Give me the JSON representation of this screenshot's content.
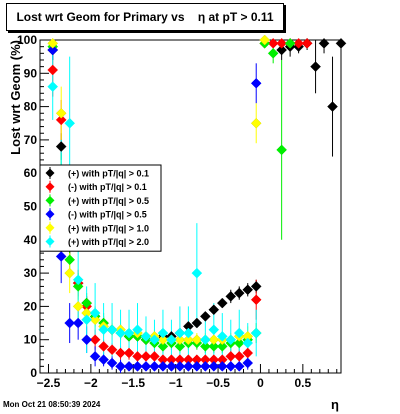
{
  "footer": {
    "timestamp": "Mon Oct 21 08:50:39 2024"
  },
  "chart_data": {
    "type": "scatter",
    "title": "Lost wrt Geom for Primary vs    η at pT > 0.11",
    "xlabel": "η",
    "ylabel": "Lost wrt Geom (%)",
    "xlim": [
      -2.6,
      0.95
    ],
    "ylim": [
      0,
      100
    ],
    "xticks": [
      -2.5,
      -2,
      -1.5,
      -1,
      -0.5,
      0,
      0.5
    ],
    "xtick_labels": [
      "−2.5",
      "−2",
      "−1.5",
      "−1",
      "−0.5",
      "0",
      "0.5"
    ],
    "yticks": [
      0,
      10,
      20,
      30,
      40,
      50,
      60,
      70,
      80,
      90,
      100
    ],
    "yticks_minor_step": 2,
    "grid": false,
    "legend_position": "middle-left",
    "series": [
      {
        "name": "(+) with pT/|q| > 0.1",
        "color": "#000000",
        "x": [
          -2.45,
          -2.35,
          -2.25,
          -2.15,
          -2.05,
          -1.95,
          -1.85,
          -1.75,
          -1.65,
          -1.55,
          -1.45,
          -1.35,
          -1.25,
          -1.15,
          -1.05,
          -0.95,
          -0.85,
          -0.75,
          -0.65,
          -0.55,
          -0.45,
          -0.35,
          -0.25,
          -0.15,
          -0.05,
          0.25,
          0.35,
          0.45,
          0.55,
          0.65,
          0.75,
          0.85,
          0.95
        ],
        "y": [
          97,
          68,
          38,
          27,
          21,
          17,
          15,
          13,
          12,
          11,
          11,
          10,
          10,
          11,
          11,
          12,
          14,
          15,
          17,
          19,
          21,
          23,
          24,
          25,
          26,
          97,
          98,
          98,
          99,
          92,
          99,
          80,
          99
        ],
        "err": [
          3,
          4,
          3,
          2,
          2,
          2,
          2,
          1,
          1,
          1,
          1,
          1,
          1,
          1,
          1,
          1,
          1,
          1,
          1,
          1,
          1,
          2,
          2,
          2,
          2,
          3,
          3,
          2,
          2,
          8,
          3,
          15,
          3
        ]
      },
      {
        "name": "(-) with pT/|q| > 0.1",
        "color": "#ff0000",
        "x": [
          -2.45,
          -2.35,
          -2.25,
          -2.15,
          -2.05,
          -1.95,
          -1.85,
          -1.75,
          -1.65,
          -1.55,
          -1.45,
          -1.35,
          -1.25,
          -1.15,
          -1.05,
          -0.95,
          -0.85,
          -0.75,
          -0.65,
          -0.55,
          -0.45,
          -0.35,
          -0.25,
          -0.15,
          -0.05,
          0.05,
          0.15,
          0.25,
          0.35,
          0.45,
          0.55
        ],
        "y": [
          91,
          76,
          38,
          27,
          20,
          10,
          8,
          7,
          6,
          6,
          5,
          5,
          5,
          4,
          4,
          4,
          4,
          4,
          4,
          4,
          4,
          5,
          5,
          6,
          22,
          99,
          99,
          99,
          99,
          99,
          99
        ],
        "err": [
          8,
          6,
          5,
          4,
          3,
          3,
          2,
          2,
          2,
          2,
          2,
          1,
          1,
          1,
          1,
          1,
          1,
          1,
          1,
          1,
          1,
          2,
          2,
          3,
          6,
          1,
          1,
          1,
          1,
          1,
          1
        ]
      },
      {
        "name": "(+) with pT/|q| > 0.5",
        "color": "#00ee00",
        "x": [
          -2.45,
          -2.35,
          -2.25,
          -2.15,
          -2.05,
          -1.95,
          -1.85,
          -1.75,
          -1.65,
          -1.55,
          -1.45,
          -1.35,
          -1.25,
          -1.15,
          -1.05,
          -0.95,
          -0.85,
          -0.75,
          -0.65,
          -0.55,
          -0.45,
          -0.35,
          -0.25,
          -0.15,
          -0.05,
          0.05,
          0.15,
          0.25,
          0.35
        ],
        "y": [
          98,
          60,
          34,
          26,
          21,
          17,
          15,
          13,
          12,
          11,
          11,
          10,
          9,
          8,
          9,
          8,
          9,
          9,
          8,
          8,
          8,
          9,
          9,
          10,
          12,
          99,
          96,
          67,
          99
        ],
        "err": [
          2,
          6,
          5,
          4,
          3,
          3,
          3,
          2,
          2,
          2,
          2,
          2,
          2,
          2,
          2,
          2,
          2,
          2,
          2,
          2,
          2,
          2,
          2,
          2,
          3,
          1,
          3,
          27,
          1
        ]
      },
      {
        "name": "(-) with pT/|q| > 0.5",
        "color": "#0000ff",
        "x": [
          -2.45,
          -2.35,
          -2.25,
          -2.15,
          -2.05,
          -1.95,
          -1.85,
          -1.75,
          -1.65,
          -1.55,
          -1.45,
          -1.35,
          -1.25,
          -1.15,
          -1.05,
          -0.95,
          -0.85,
          -0.75,
          -0.65,
          -0.55,
          -0.45,
          -0.35,
          -0.25,
          -0.15,
          -0.05
        ],
        "y": [
          97,
          35,
          15,
          15,
          10,
          5,
          4,
          3,
          2,
          2,
          2,
          2,
          2,
          2,
          2,
          2,
          2,
          2,
          2,
          2,
          2,
          2,
          2,
          3,
          87
        ],
        "err": [
          3,
          8,
          6,
          5,
          4,
          3,
          2,
          2,
          2,
          1,
          1,
          1,
          1,
          1,
          1,
          1,
          1,
          1,
          1,
          1,
          1,
          1,
          1,
          2,
          6
        ]
      },
      {
        "name": "(+) with pT/|q| > 1.0",
        "color": "#ffff00",
        "x": [
          -2.45,
          -2.35,
          -2.25,
          -2.15,
          -2.05,
          -1.95,
          -1.85,
          -1.75,
          -1.65,
          -1.55,
          -1.45,
          -1.35,
          -1.25,
          -1.15,
          -1.05,
          -0.95,
          -0.85,
          -0.75,
          -0.65,
          -0.55,
          -0.45,
          -0.35,
          -0.25,
          -0.15,
          -0.05,
          0.05
        ],
        "y": [
          99,
          78,
          30,
          20,
          18,
          16,
          14,
          13,
          13,
          12,
          12,
          11,
          11,
          10,
          10,
          10,
          10,
          10,
          10,
          10,
          10,
          10,
          11,
          11,
          75,
          100
        ],
        "err": [
          1,
          8,
          6,
          5,
          4,
          3,
          3,
          3,
          3,
          2,
          2,
          2,
          2,
          2,
          2,
          2,
          2,
          2,
          2,
          2,
          2,
          2,
          2,
          3,
          6,
          1
        ]
      },
      {
        "name": "(+) with pT/|q| > 2.0",
        "color": "#00ffff",
        "x": [
          -2.45,
          -2.35,
          -2.25,
          -2.15,
          -2.05,
          -1.95,
          -1.85,
          -1.75,
          -1.65,
          -1.55,
          -1.45,
          -1.35,
          -1.25,
          -1.15,
          -1.05,
          -0.95,
          -0.85,
          -0.75,
          -0.65,
          -0.55,
          -0.45,
          -0.35,
          -0.25,
          -0.15,
          -0.05
        ],
        "y": [
          86,
          55,
          75,
          28,
          16,
          18,
          13,
          13,
          12,
          12,
          13,
          11,
          10,
          12,
          10,
          12,
          12,
          30,
          10,
          13,
          11,
          10,
          12,
          9,
          12
        ],
        "err": [
          10,
          15,
          20,
          12,
          10,
          9,
          8,
          8,
          7,
          7,
          8,
          6,
          6,
          7,
          6,
          8,
          8,
          15,
          7,
          8,
          7,
          6,
          7,
          6,
          7
        ]
      }
    ]
  }
}
